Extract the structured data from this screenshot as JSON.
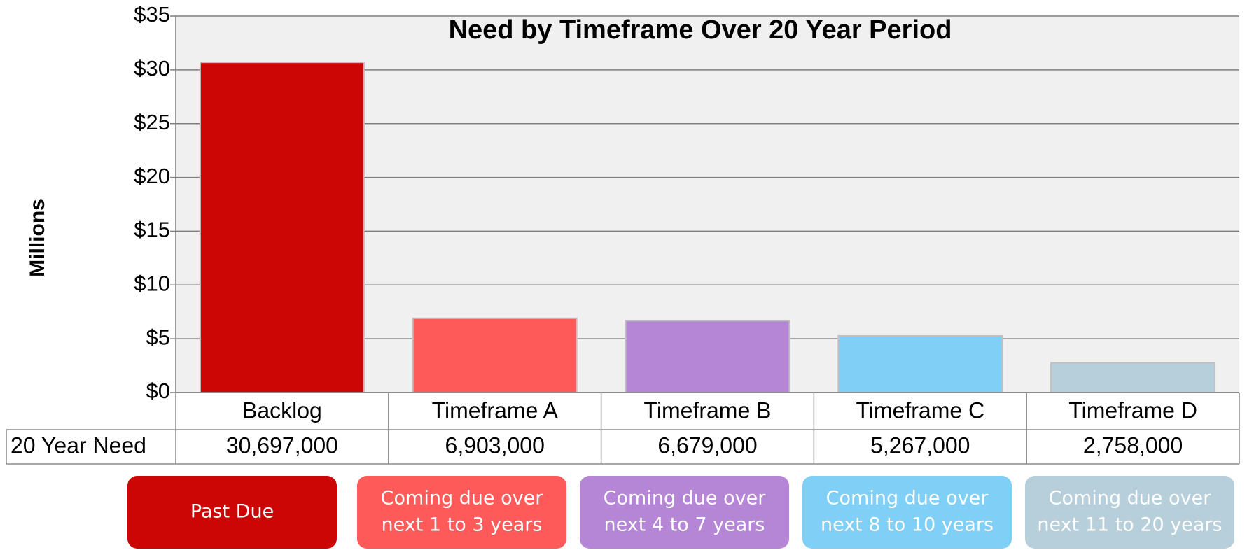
{
  "chart_data": {
    "type": "bar",
    "title": "Need by Timeframe Over 20 Year Period",
    "y_label": "Millions",
    "categories": [
      "Backlog",
      "Timeframe A",
      "Timeframe B",
      "Timeframe C",
      "Timeframe D"
    ],
    "values": [
      30.697,
      6.903,
      6.679,
      5.267,
      2.758
    ],
    "value_labels": [
      "30,697,000",
      "6,903,000",
      "6,679,000",
      "5,267,000",
      "2,758,000"
    ],
    "table_row_label": "20 Year Need",
    "colors": [
      "#cc0605",
      "#ff5a5a",
      "#b585d6",
      "#7fcff7",
      "#b7cfdb"
    ],
    "ylim": [
      0,
      35
    ],
    "yticks": [
      {
        "value": 0,
        "label": "$0"
      },
      {
        "value": 5,
        "label": "$5"
      },
      {
        "value": 10,
        "label": "$10"
      },
      {
        "value": 15,
        "label": "$15"
      },
      {
        "value": 20,
        "label": "$20"
      },
      {
        "value": 25,
        "label": "$25"
      },
      {
        "value": 30,
        "label": "$30"
      },
      {
        "value": 35,
        "label": "$35"
      }
    ],
    "grid": true,
    "legend_boxes": [
      {
        "lines": [
          "Past Due"
        ],
        "color": "#cc0605"
      },
      {
        "lines": [
          "Coming due over",
          "next 1 to 3 years"
        ],
        "color": "#ff5a5a"
      },
      {
        "lines": [
          "Coming due over",
          "next 4 to 7 years"
        ],
        "color": "#b585d6"
      },
      {
        "lines": [
          "Coming due over",
          "next 8 to 10 years"
        ],
        "color": "#7fcff7"
      },
      {
        "lines": [
          "Coming due over",
          "next 11 to 20 years"
        ],
        "color": "#b7cfdb"
      }
    ]
  }
}
